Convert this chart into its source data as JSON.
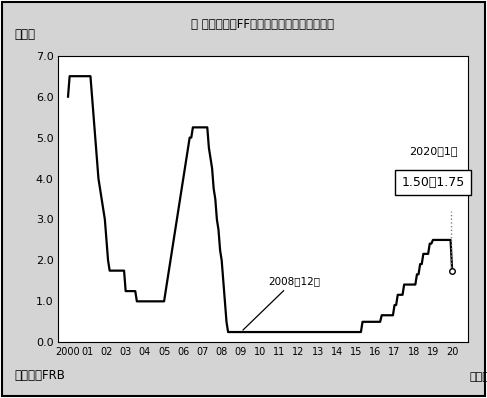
{
  "title": "図 政策金利（FFレート）の誤導目標の推移",
  "ylabel": "（％）",
  "xlabel_note": "（年）",
  "source": "（出所）FRB",
  "ylim": [
    0.0,
    7.0
  ],
  "yticks": [
    0.0,
    1.0,
    2.0,
    3.0,
    4.0,
    5.0,
    6.0,
    7.0
  ],
  "xtick_labels": [
    "2000",
    "01",
    "02",
    "03",
    "04",
    "05",
    "06",
    "07",
    "08",
    "09",
    "10",
    "11",
    "12",
    "13",
    "14",
    "15",
    "16",
    "17",
    "18",
    "19",
    "20"
  ],
  "annotation_2008_label": "2008年12月",
  "annotation_2020_top": "2020年1月",
  "annotation_2020_box": "1.50～1.75",
  "bg_color": "#e8e8e8",
  "data_x": [
    0,
    0.083,
    0.167,
    0.25,
    0.333,
    0.417,
    0.5,
    0.583,
    0.667,
    0.75,
    0.833,
    0.917,
    1,
    1.083,
    1.167,
    1.25,
    1.333,
    1.417,
    1.5,
    1.583,
    1.667,
    1.75,
    1.833,
    1.917,
    2,
    2.083,
    2.167,
    2.25,
    2.333,
    2.417,
    2.5,
    2.583,
    2.667,
    2.75,
    2.833,
    2.917,
    3,
    3.083,
    3.167,
    3.25,
    3.333,
    3.417,
    3.5,
    3.583,
    3.667,
    3.75,
    3.833,
    3.917,
    4,
    4.083,
    4.167,
    4.25,
    4.333,
    4.417,
    4.5,
    4.583,
    4.667,
    4.75,
    4.833,
    4.917,
    5,
    5.083,
    5.167,
    5.25,
    5.333,
    5.417,
    5.5,
    5.583,
    5.667,
    5.75,
    5.833,
    5.917,
    6,
    6.083,
    6.167,
    6.25,
    6.333,
    6.417,
    6.5,
    6.583,
    6.667,
    6.75,
    6.833,
    6.917,
    7,
    7.083,
    7.167,
    7.25,
    7.333,
    7.417,
    7.5,
    7.583,
    7.667,
    7.75,
    7.833,
    7.917,
    8,
    8.083,
    8.167,
    8.25,
    8.333,
    8.417,
    8.5,
    8.583,
    8.667,
    8.75,
    8.833,
    8.917,
    9,
    9.083,
    9.167,
    9.25,
    9.333,
    9.417,
    9.5,
    9.583,
    9.667,
    9.75,
    9.833,
    9.917,
    10,
    10.083,
    10.167,
    10.25,
    10.333,
    10.417,
    10.5,
    10.583,
    10.667,
    10.75,
    10.833,
    10.917,
    11,
    11.083,
    11.167,
    11.25,
    11.333,
    11.417,
    11.5,
    11.583,
    11.667,
    11.75,
    11.833,
    11.917,
    12,
    12.083,
    12.167,
    12.25,
    12.333,
    12.417,
    12.5,
    12.583,
    12.667,
    12.75,
    12.833,
    12.917,
    13,
    13.083,
    13.167,
    13.25,
    13.333,
    13.417,
    13.5,
    13.583,
    13.667,
    13.75,
    13.833,
    13.917,
    14,
    14.083,
    14.167,
    14.25,
    14.333,
    14.417,
    14.5,
    14.583,
    14.667,
    14.75,
    14.833,
    14.917,
    15,
    15.083,
    15.167,
    15.25,
    15.333,
    15.417,
    15.5,
    15.583,
    15.667,
    15.75,
    15.833,
    15.917,
    16,
    16.083,
    16.167,
    16.25,
    16.333,
    16.417,
    16.5,
    16.583,
    16.667,
    16.75,
    16.833,
    16.917,
    17,
    17.083,
    17.167,
    17.25,
    17.333,
    17.417,
    17.5,
    17.583,
    17.667,
    17.75,
    17.833,
    17.917,
    18,
    18.083,
    18.167,
    18.25,
    18.333,
    18.417,
    18.5,
    18.583,
    18.667,
    18.75,
    18.833,
    18.917,
    19,
    19.083,
    19.167,
    19.25,
    19.333,
    19.417,
    19.5,
    19.583,
    19.667,
    19.75,
    19.833,
    19.917,
    20
  ],
  "data_y": [
    6.0,
    6.5,
    6.5,
    6.5,
    6.5,
    6.5,
    6.5,
    6.5,
    6.5,
    6.5,
    6.5,
    6.5,
    6.5,
    6.5,
    6.5,
    6.0,
    5.5,
    5.0,
    4.5,
    4.0,
    3.75,
    3.5,
    3.25,
    3.0,
    2.5,
    2.0,
    1.75,
    1.75,
    1.75,
    1.75,
    1.75,
    1.75,
    1.75,
    1.75,
    1.75,
    1.75,
    1.25,
    1.25,
    1.25,
    1.25,
    1.25,
    1.25,
    1.25,
    1.0,
    1.0,
    1.0,
    1.0,
    1.0,
    1.0,
    1.0,
    1.0,
    1.0,
    1.0,
    1.0,
    1.0,
    1.0,
    1.0,
    1.0,
    1.0,
    1.0,
    1.0,
    1.25,
    1.5,
    1.75,
    2.0,
    2.25,
    2.5,
    2.75,
    3.0,
    3.25,
    3.5,
    3.75,
    4.0,
    4.25,
    4.5,
    4.75,
    5.0,
    5.0,
    5.25,
    5.25,
    5.25,
    5.25,
    5.25,
    5.25,
    5.25,
    5.25,
    5.25,
    5.25,
    4.75,
    4.5,
    4.25,
    3.75,
    3.5,
    3.0,
    2.75,
    2.25,
    2.0,
    1.5,
    1.0,
    0.5,
    0.25,
    0.25,
    0.25,
    0.25,
    0.25,
    0.25,
    0.25,
    0.25,
    0.25,
    0.25,
    0.25,
    0.25,
    0.25,
    0.25,
    0.25,
    0.25,
    0.25,
    0.25,
    0.25,
    0.25,
    0.25,
    0.25,
    0.25,
    0.25,
    0.25,
    0.25,
    0.25,
    0.25,
    0.25,
    0.25,
    0.25,
    0.25,
    0.25,
    0.25,
    0.25,
    0.25,
    0.25,
    0.25,
    0.25,
    0.25,
    0.25,
    0.25,
    0.25,
    0.25,
    0.25,
    0.25,
    0.25,
    0.25,
    0.25,
    0.25,
    0.25,
    0.25,
    0.25,
    0.25,
    0.25,
    0.25,
    0.25,
    0.25,
    0.25,
    0.25,
    0.25,
    0.25,
    0.25,
    0.25,
    0.25,
    0.25,
    0.25,
    0.25,
    0.25,
    0.25,
    0.25,
    0.25,
    0.25,
    0.25,
    0.25,
    0.25,
    0.25,
    0.25,
    0.25,
    0.25,
    0.25,
    0.25,
    0.25,
    0.25,
    0.5,
    0.5,
    0.5,
    0.5,
    0.5,
    0.5,
    0.5,
    0.5,
    0.5,
    0.5,
    0.5,
    0.5,
    0.66,
    0.66,
    0.66,
    0.66,
    0.66,
    0.66,
    0.66,
    0.66,
    0.91,
    0.91,
    1.16,
    1.16,
    1.16,
    1.16,
    1.41,
    1.41,
    1.41,
    1.41,
    1.41,
    1.41,
    1.41,
    1.41,
    1.66,
    1.66,
    1.91,
    1.91,
    2.16,
    2.16,
    2.16,
    2.16,
    2.41,
    2.41,
    2.5,
    2.5,
    2.5,
    2.5,
    2.5,
    2.5,
    2.5,
    2.5,
    2.5,
    2.5,
    2.5,
    2.5,
    1.75
  ]
}
